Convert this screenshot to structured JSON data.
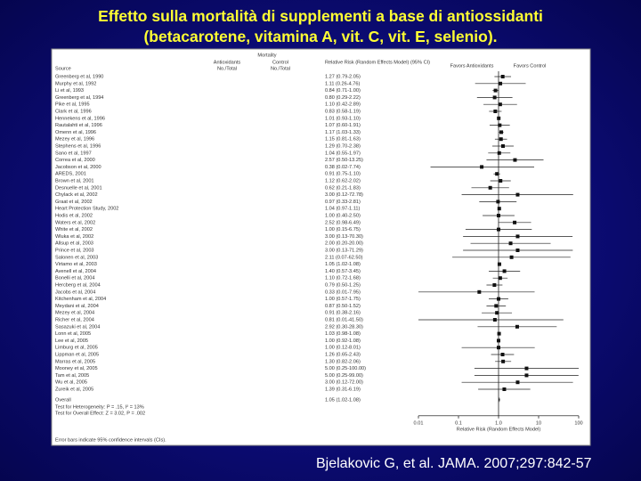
{
  "slide": {
    "title_line1": "Effetto sulla mortalità di supplementi a base di antiossidanti",
    "title_line2": "(betacarotene, vitamina A, vit. C, vit. E, selenio).",
    "citation": "Bjelakovic G, et al. JAMA. 2007;297:842-57"
  },
  "forest": {
    "header_source": "Source",
    "header_mortality": "Mortality",
    "header_antiox": "Antioxidants",
    "header_control": "Control",
    "header_nototal": "No./Total",
    "header_rr": "Relative Risk (Random Effects Model) (95% CI)",
    "favors_antiox": "Favors Antioxidants",
    "favors_control": "Favors Control",
    "xlim": [
      0.01,
      100
    ],
    "xticks": [
      0.01,
      0.1,
      {
        "value": 1,
        "label": "1.0"
      },
      10,
      100
    ],
    "xlabel": "Relative Risk (Random Effects Model)",
    "rows": [
      {
        "source": "Greenberg et al, 1990",
        "rr": 1.27,
        "lo": 0.79,
        "hi": 2.05,
        "ci": "1.27 (0.79-2.05)"
      },
      {
        "source": "Murphy et al, 1992",
        "rr": 1.11,
        "lo": 0.26,
        "hi": 4.76,
        "ci": "1.11 (0.26-4.76)"
      },
      {
        "source": "Li et al, 1993",
        "rr": 0.84,
        "lo": 0.71,
        "hi": 1.0,
        "ci": "0.84 (0.71-1.00)"
      },
      {
        "source": "Greenberg et al, 1994",
        "rr": 0.8,
        "lo": 0.29,
        "hi": 2.22,
        "ci": "0.80 (0.29-2.22)"
      },
      {
        "source": "Pike et al, 1995",
        "rr": 1.1,
        "lo": 0.42,
        "hi": 2.89,
        "ci": "1.10 (0.42-2.89)"
      },
      {
        "source": "Clark et al, 1996",
        "rr": 0.83,
        "lo": 0.58,
        "hi": 1.19,
        "ci": "0.83 (0.58-1.19)"
      },
      {
        "source": "Hennekens et al, 1996",
        "rr": 1.01,
        "lo": 0.93,
        "hi": 1.1,
        "ci": "1.01 (0.93-1.10)"
      },
      {
        "source": "Rautalahti et al, 1996",
        "rr": 1.07,
        "lo": 0.6,
        "hi": 1.91,
        "ci": "1.07 (0.60-1.91)"
      },
      {
        "source": "Omenn et al, 1996",
        "rr": 1.17,
        "lo": 1.03,
        "hi": 1.33,
        "ci": "1.17 (1.03-1.33)"
      },
      {
        "source": "Mezey et al, 1996",
        "rr": 1.15,
        "lo": 0.81,
        "hi": 1.63,
        "ci": "1.15 (0.81-1.63)"
      },
      {
        "source": "Stephens et al, 1996",
        "rr": 1.29,
        "lo": 0.7,
        "hi": 2.38,
        "ci": "1.29 (0.70-2.38)"
      },
      {
        "source": "Sano et al, 1997",
        "rr": 1.04,
        "lo": 0.55,
        "hi": 1.97,
        "ci": "1.04 (0.55-1.97)"
      },
      {
        "source": "Correa et al, 2000",
        "rr": 2.57,
        "lo": 0.5,
        "hi": 13.25,
        "ci": "2.57 (0.50-13.25)"
      },
      {
        "source": "Jacobson et al, 2000",
        "rr": 0.38,
        "lo": 0.02,
        "hi": 7.74,
        "ci": "0.38 (0.02-7.74)"
      },
      {
        "source": "AREDS, 2001",
        "rr": 0.91,
        "lo": 0.75,
        "hi": 1.1,
        "ci": "0.91 (0.75-1.10)"
      },
      {
        "source": "Brown et al, 2001",
        "rr": 1.12,
        "lo": 0.62,
        "hi": 2.02,
        "ci": "1.12 (0.62-2.02)"
      },
      {
        "source": "Desnuelle et al, 2001",
        "rr": 0.62,
        "lo": 0.21,
        "hi": 1.83,
        "ci": "0.62 (0.21-1.83)"
      },
      {
        "source": "Chylack et al, 2002",
        "rr": 3.0,
        "lo": 0.12,
        "hi": 72.78,
        "ci": "3.00 (0.12-72.78)"
      },
      {
        "source": "Graat et al, 2002",
        "rr": 0.97,
        "lo": 0.33,
        "hi": 2.81,
        "ci": "0.97 (0.33-2.81)"
      },
      {
        "source": "Heart Protection Study, 2002",
        "rr": 1.04,
        "lo": 0.97,
        "hi": 1.11,
        "ci": "1.04 (0.97-1.11)"
      },
      {
        "source": "Hodis et al, 2002",
        "rr": 1.0,
        "lo": 0.4,
        "hi": 2.5,
        "ci": "1.00 (0.40-2.50)"
      },
      {
        "source": "Waters et al, 2002",
        "rr": 2.52,
        "lo": 0.98,
        "hi": 6.49,
        "ci": "2.52 (0.98-6.49)"
      },
      {
        "source": "White et al, 2002",
        "rr": 1.0,
        "lo": 0.15,
        "hi": 6.75,
        "ci": "1.00 (0.15-6.75)"
      },
      {
        "source": "Wluka et al, 2002",
        "rr": 3.0,
        "lo": 0.13,
        "hi": 70.3,
        "ci": "3.00 (0.13-70.30)"
      },
      {
        "source": "Allsup et al, 2003",
        "rr": 2.0,
        "lo": 0.2,
        "hi": 20.0,
        "ci": "2.00 (0.20-20.00)"
      },
      {
        "source": "Prince et al, 2003",
        "rr": 3.0,
        "lo": 0.13,
        "hi": 71.29,
        "ci": "3.00 (0.13-71.29)"
      },
      {
        "source": "Salonen et al, 2003",
        "rr": 2.11,
        "lo": 0.07,
        "hi": 62.5,
        "ci": "2.11 (0.07-62.50)"
      },
      {
        "source": "Virtamo et al, 2003",
        "rr": 1.05,
        "lo": 1.02,
        "hi": 1.08,
        "ci": "1.05 (1.02-1.08)"
      },
      {
        "source": "Avenell et al, 2004",
        "rr": 1.4,
        "lo": 0.57,
        "hi": 3.45,
        "ci": "1.40 (0.57-3.45)"
      },
      {
        "source": "Bonelli et al, 2004",
        "rr": 1.1,
        "lo": 0.72,
        "hi": 1.68,
        "ci": "1.10 (0.72-1.68)"
      },
      {
        "source": "Hercberg et al, 2004",
        "rr": 0.79,
        "lo": 0.5,
        "hi": 1.25,
        "ci": "0.79 (0.50-1.25)"
      },
      {
        "source": "Jacobs et al, 2004",
        "rr": 0.33,
        "lo": 0.01,
        "hi": 7.95,
        "ci": "0.33 (0.01-7.95)"
      },
      {
        "source": "Kitchenham et al, 2004",
        "rr": 1.0,
        "lo": 0.57,
        "hi": 1.75,
        "ci": "1.00 (0.57-1.75)"
      },
      {
        "source": "Meydani et al, 2004",
        "rr": 0.87,
        "lo": 0.5,
        "hi": 1.52,
        "ci": "0.87 (0.50-1.52)"
      },
      {
        "source": "Mezey et al, 2004",
        "rr": 0.91,
        "lo": 0.38,
        "hi": 2.16,
        "ci": "0.91 (0.38-2.16)"
      },
      {
        "source": "Richer et al, 2004",
        "rr": 0.81,
        "lo": 0.01,
        "hi": 41.5,
        "ci": "0.81 (0.01-41.50)"
      },
      {
        "source": "Sasazuki et al, 2004",
        "rr": 2.92,
        "lo": 0.3,
        "hi": 28.3,
        "ci": "2.92 (0.30-28.30)"
      },
      {
        "source": "Lonn et al, 2005",
        "rr": 1.03,
        "lo": 0.98,
        "hi": 1.08,
        "ci": "1.03 (0.98-1.08)"
      },
      {
        "source": "Lee et al, 2005",
        "rr": 1.0,
        "lo": 0.92,
        "hi": 1.08,
        "ci": "1.00 (0.92-1.08)"
      },
      {
        "source": "Limburg et al, 2005",
        "rr": 1.0,
        "lo": 0.12,
        "hi": 8.01,
        "ci": "1.00 (0.12-8.01)"
      },
      {
        "source": "Lippman et al, 2005",
        "rr": 1.26,
        "lo": 0.65,
        "hi": 2.43,
        "ci": "1.26 (0.65-2.43)"
      },
      {
        "source": "Marras et al, 2005",
        "rr": 1.3,
        "lo": 0.82,
        "hi": 2.06,
        "ci": "1.30 (0.82-2.06)"
      },
      {
        "source": "Mooney et al, 2005",
        "rr": 5.0,
        "lo": 0.25,
        "hi": 100.0,
        "ci": "5.00 (0.25-100.00)"
      },
      {
        "source": "Tam et al, 2005",
        "rr": 5.0,
        "lo": 0.25,
        "hi": 99.0,
        "ci": "5.00 (0.25-99.00)"
      },
      {
        "source": "Wu et al, 2005",
        "rr": 3.0,
        "lo": 0.12,
        "hi": 72.0,
        "ci": "3.00 (0.12-72.00)"
      },
      {
        "source": "Zureik et al, 2005",
        "rr": 1.39,
        "lo": 0.31,
        "hi": 6.19,
        "ci": "1.39 (0.31-6.19)"
      }
    ],
    "overall": {
      "source": "Overall",
      "rr": 1.05,
      "lo": 1.02,
      "hi": 1.08,
      "ci": "1.05 (1.02-1.08)"
    },
    "heterogeneity": "Test for Heterogeneity: P = .15, I² = 13%",
    "overall_effect": "Test for Overall Effect: Z = 3.02, P = .002",
    "footnote": "Error bars indicate 95% confidence intervals (CIs)."
  }
}
